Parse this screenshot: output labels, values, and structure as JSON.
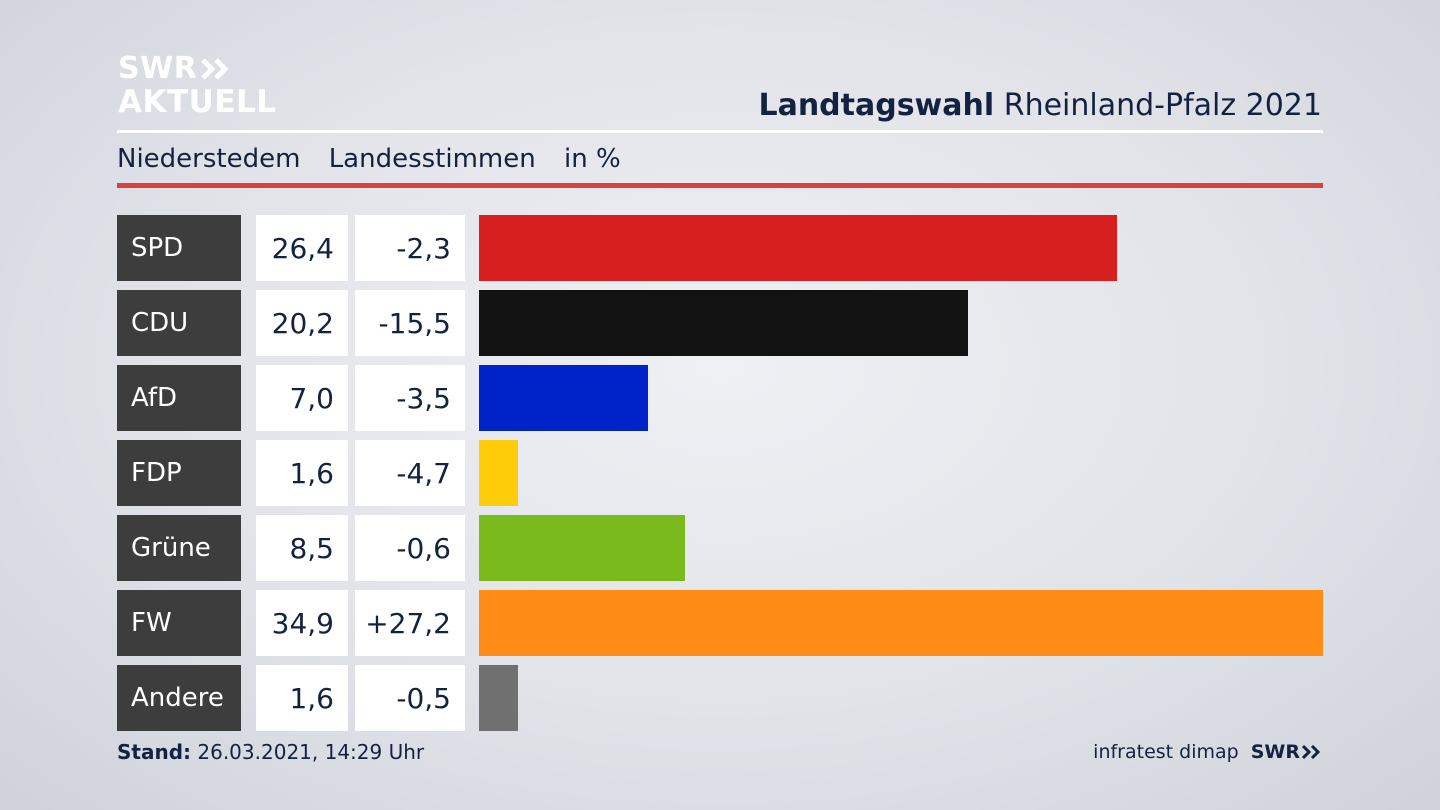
{
  "logo": {
    "line1": "SWR",
    "line2": "AKTUELL"
  },
  "header": {
    "title_bold": "Landtagswahl",
    "title_rest": "Rheinland-Pfalz 2021"
  },
  "subheader": {
    "place": "Niederstedem",
    "type": "Landesstimmen",
    "unit": "in %"
  },
  "chart_data": {
    "type": "bar",
    "orientation": "horizontal",
    "categories": [
      "SPD",
      "CDU",
      "AfD",
      "FDP",
      "Grüne",
      "FW",
      "Andere"
    ],
    "values": [
      26.4,
      20.2,
      7.0,
      1.6,
      8.5,
      34.9,
      1.6
    ],
    "value_labels": [
      "26,4",
      "20,2",
      "7,0",
      "1,6",
      "8,5",
      "34,9",
      "1,6"
    ],
    "change_labels": [
      "-2,3",
      "-15,5",
      "-3,5",
      "-4,7",
      "-0,6",
      "+27,2",
      "-0,5"
    ],
    "changes": [
      -2.3,
      -15.5,
      -3.5,
      -4.7,
      -0.6,
      27.2,
      -0.5
    ],
    "colors": [
      "#d81f1f",
      "#121212",
      "#0022c9",
      "#ffcc0a",
      "#7aba1d",
      "#ff8c17",
      "#707070"
    ],
    "xlim": [
      0,
      34.9
    ]
  },
  "footer": {
    "stand_label": "Stand:",
    "stand_value": "26.03.2021, 14:29 Uhr",
    "source": "infratest dimap",
    "brand": "SWR"
  }
}
